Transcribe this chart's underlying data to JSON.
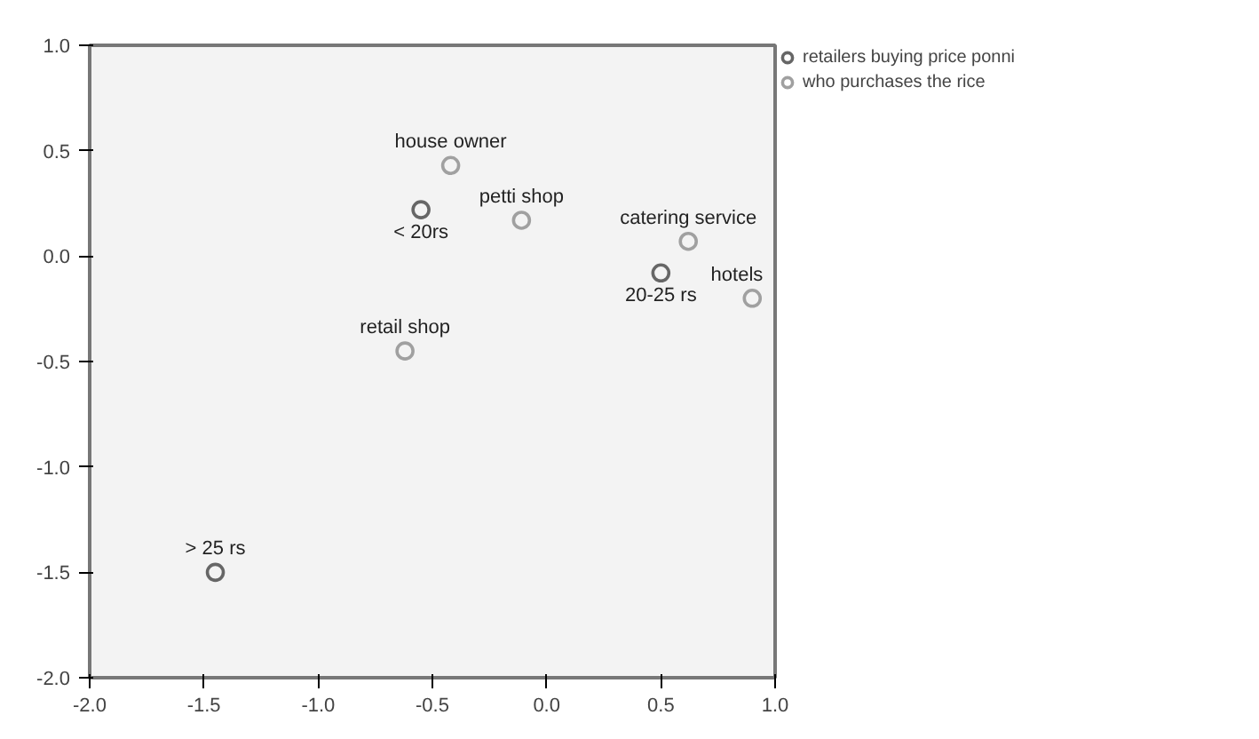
{
  "chart_data": {
    "type": "scatter",
    "marker": "circle",
    "grid": false,
    "legend": "top right",
    "xlim": [
      -2.0,
      1.0
    ],
    "ylim": [
      -2.0,
      1.0
    ],
    "xticks": [
      {
        "value": -2.0,
        "label": "-2.0"
      },
      {
        "value": -1.5,
        "label": "-1.5"
      },
      {
        "value": -1.0,
        "label": "-1.0"
      },
      {
        "value": -0.5,
        "label": "-0.5"
      },
      {
        "value": 0.0,
        "label": "0.0"
      },
      {
        "value": 0.5,
        "label": "0.5"
      },
      {
        "value": 1.0,
        "label": "1.0"
      }
    ],
    "yticks": [
      {
        "value": -2.0,
        "label": "-2.0"
      },
      {
        "value": -1.5,
        "label": "-1.5"
      },
      {
        "value": -1.0,
        "label": "-1.0"
      },
      {
        "value": -0.5,
        "label": "-0.5"
      },
      {
        "value": 0.0,
        "label": "0.0"
      },
      {
        "value": 0.5,
        "label": "0.5"
      },
      {
        "value": 1.0,
        "label": "1.0"
      }
    ],
    "series": [
      {
        "name": "retailers buying price ponni",
        "color": "#666666",
        "x": [
          -0.55,
          0.5,
          -1.45
        ],
        "values": [
          0.22,
          -0.08,
          -1.5
        ]
      },
      {
        "name": "who purchases the rice",
        "color": "#a0a0a0",
        "x": [
          -0.42,
          -0.11,
          0.62,
          0.9,
          -0.62
        ],
        "values": [
          0.43,
          0.17,
          0.07,
          -0.2,
          -0.45
        ]
      }
    ],
    "annotations": [
      {
        "text": "< 20rs",
        "x": -0.55,
        "y": 0.22
      },
      {
        "text": "20-25 rs",
        "x": 0.5,
        "y": -0.08
      },
      {
        "text": "> 25 rs",
        "x": -1.45,
        "y": -1.5
      },
      {
        "text": "house owner",
        "x": -0.42,
        "y": 0.43
      },
      {
        "text": "petti shop",
        "x": -0.11,
        "y": 0.17
      },
      {
        "text": "catering service",
        "x": 0.62,
        "y": 0.07
      },
      {
        "text": "hotels",
        "x": 0.9,
        "y": -0.2
      },
      {
        "text": "retail shop",
        "x": -0.62,
        "y": -0.45
      }
    ]
  }
}
